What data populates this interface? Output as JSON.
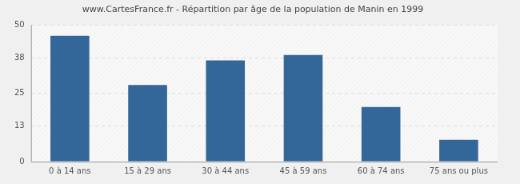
{
  "chart_data": {
    "type": "bar",
    "title": "www.CartesFrance.fr - Répartition par âge de la population de Manin en 1999",
    "categories": [
      "0 à 14 ans",
      "15 à 29 ans",
      "30 à 44 ans",
      "45 à 59 ans",
      "60 à 74 ans",
      "75 ans ou plus"
    ],
    "values": [
      46,
      28,
      37,
      39,
      20,
      8
    ],
    "color": "#336699",
    "ylim": [
      0,
      50
    ],
    "yticks": [
      0,
      13,
      25,
      38,
      50
    ],
    "grid": true
  }
}
